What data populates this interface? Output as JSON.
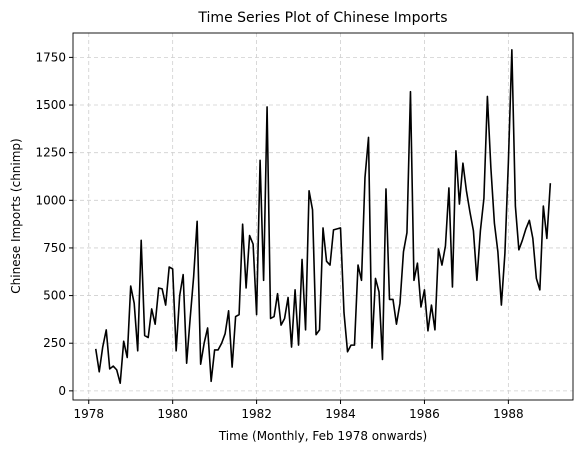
{
  "chart_data": {
    "type": "line",
    "title": "Time Series Plot of Chinese Imports",
    "x_label": "Time (Monthly, Feb 1978 onwards)",
    "y_label": "Chinese Imports (chnimp)",
    "xlim": [
      1977.625,
      1989.54
    ],
    "ylim": [
      -48,
      1878
    ],
    "xticks": [
      1978,
      1980,
      1982,
      1984,
      1986,
      1988
    ],
    "yticks": [
      0,
      250,
      500,
      750,
      1000,
      1250,
      1500,
      1750
    ],
    "grid": true,
    "series": [
      {
        "name": "chnimp",
        "color": "#000000",
        "x": [
          1978.167,
          1978.25,
          1978.333,
          1978.417,
          1978.5,
          1978.583,
          1978.667,
          1978.75,
          1978.833,
          1978.917,
          1979,
          1979.083,
          1979.167,
          1979.25,
          1979.333,
          1979.417,
          1979.5,
          1979.583,
          1979.667,
          1979.75,
          1979.833,
          1979.917,
          1980,
          1980.083,
          1980.167,
          1980.25,
          1980.333,
          1980.417,
          1980.5,
          1980.583,
          1980.667,
          1980.75,
          1980.833,
          1980.917,
          1981,
          1981.083,
          1981.167,
          1981.25,
          1981.333,
          1981.417,
          1981.5,
          1981.583,
          1981.667,
          1981.75,
          1981.833,
          1981.917,
          1982,
          1982.083,
          1982.167,
          1982.25,
          1982.333,
          1982.417,
          1982.5,
          1982.583,
          1982.667,
          1982.75,
          1982.833,
          1982.917,
          1983,
          1983.083,
          1983.167,
          1983.25,
          1983.333,
          1983.417,
          1983.5,
          1983.583,
          1983.667,
          1983.75,
          1983.833,
          1983.917,
          1984,
          1984.083,
          1984.167,
          1984.25,
          1984.333,
          1984.417,
          1984.5,
          1984.583,
          1984.667,
          1984.75,
          1984.833,
          1984.917,
          1985,
          1985.083,
          1985.167,
          1985.25,
          1985.333,
          1985.417,
          1985.5,
          1985.583,
          1985.667,
          1985.75,
          1985.833,
          1985.917,
          1986,
          1986.083,
          1986.167,
          1986.25,
          1986.333,
          1986.417,
          1986.5,
          1986.583,
          1986.667,
          1986.75,
          1986.833,
          1986.917,
          1987,
          1987.083,
          1987.167,
          1987.25,
          1987.333,
          1987.417,
          1987.5,
          1987.583,
          1987.667,
          1987.75,
          1987.833,
          1987.917,
          1988,
          1988.083,
          1988.167,
          1988.25,
          1988.333,
          1988.417,
          1988.5,
          1988.583,
          1988.667,
          1988.75,
          1988.833,
          1988.917,
          1989
        ],
        "values": [
          220,
          100,
          230,
          320,
          115,
          130,
          110,
          40,
          260,
          175,
          550,
          460,
          210,
          790,
          290,
          280,
          430,
          350,
          540,
          535,
          450,
          650,
          640,
          210,
          500,
          610,
          145,
          380,
          600,
          890,
          140,
          250,
          330,
          50,
          215,
          215,
          250,
          300,
          420,
          125,
          390,
          400,
          875,
          540,
          815,
          770,
          400,
          1210,
          580,
          1490,
          380,
          390,
          510,
          345,
          380,
          490,
          230,
          530,
          240,
          690,
          320,
          1050,
          950,
          295,
          320,
          855,
          680,
          660,
          845,
          850,
          855,
          410,
          205,
          240,
          240,
          660,
          580,
          1120,
          1330,
          225,
          590,
          520,
          165,
          1060,
          480,
          480,
          350,
          460,
          730,
          830,
          1570,
          580,
          670,
          440,
          530,
          315,
          450,
          320,
          745,
          660,
          760,
          1065,
          545,
          1260,
          980,
          1195,
          1050,
          940,
          840,
          580,
          840,
          1010,
          1545,
          1170,
          880,
          730,
          450,
          720,
          1200,
          1790,
          970,
          740,
          790,
          850,
          895,
          800,
          590,
          530,
          970,
          800,
          1090
        ]
      }
    ]
  }
}
